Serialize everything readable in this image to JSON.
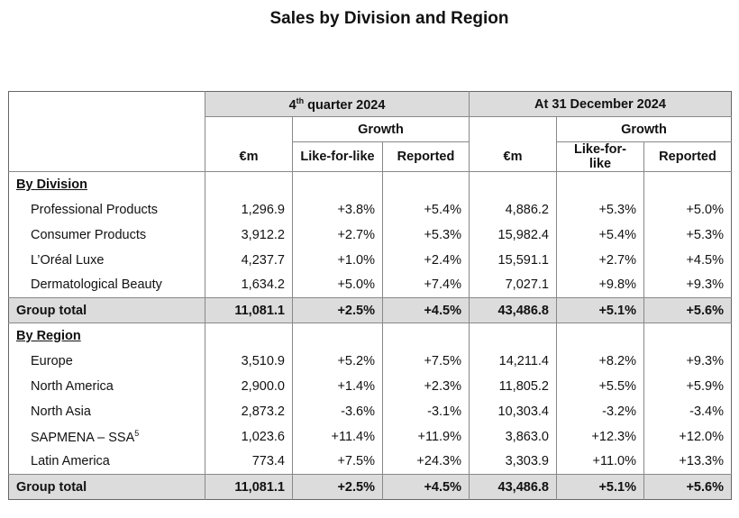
{
  "title": "Sales by Division and Region",
  "headers": {
    "q4_prefix": "4",
    "q4_sup": "th",
    "q4_suffix": " quarter 2024",
    "year": "At 31 December 2024",
    "growth": "Growth",
    "eur": "€m",
    "lfl": "Like-for-like",
    "reported": "Reported"
  },
  "division": {
    "label": "By Division",
    "rows": [
      {
        "name": "Professional Products",
        "q_em": "1,296.9",
        "q_lfl": "+3.8%",
        "q_rep": "+5.4%",
        "y_em": "4,886.2",
        "y_lfl": "+5.3%",
        "y_rep": "+5.0%"
      },
      {
        "name": "Consumer Products",
        "q_em": "3,912.2",
        "q_lfl": "+2.7%",
        "q_rep": "+5.3%",
        "y_em": "15,982.4",
        "y_lfl": "+5.4%",
        "y_rep": "+5.3%"
      },
      {
        "name": "L’Oréal Luxe",
        "q_em": "4,237.7",
        "q_lfl": "+1.0%",
        "q_rep": "+2.4%",
        "y_em": "15,591.1",
        "y_lfl": "+2.7%",
        "y_rep": "+4.5%"
      },
      {
        "name": "Dermatological Beauty",
        "q_em": "1,634.2",
        "q_lfl": "+5.0%",
        "q_rep": "+7.4%",
        "y_em": "7,027.1",
        "y_lfl": "+9.8%",
        "y_rep": "+9.3%"
      }
    ],
    "total": {
      "name": "Group total",
      "q_em": "11,081.1",
      "q_lfl": "+2.5%",
      "q_rep": "+4.5%",
      "y_em": "43,486.8",
      "y_lfl": "+5.1%",
      "y_rep": "+5.6%"
    }
  },
  "region": {
    "label": "By Region",
    "rows": [
      {
        "name": "Europe",
        "q_em": "3,510.9",
        "q_lfl": "+5.2%",
        "q_rep": "+7.5%",
        "y_em": "14,211.4",
        "y_lfl": "+8.2%",
        "y_rep": "+9.3%"
      },
      {
        "name": "North America",
        "q_em": "2,900.0",
        "q_lfl": "+1.4%",
        "q_rep": "+2.3%",
        "y_em": "11,805.2",
        "y_lfl": "+5.5%",
        "y_rep": "+5.9%"
      },
      {
        "name": "North Asia",
        "q_em": "2,873.2",
        "q_lfl": "-3.6%",
        "q_rep": "-3.1%",
        "y_em": "10,303.4",
        "y_lfl": "-3.2%",
        "y_rep": "-3.4%"
      },
      {
        "name": "SAPMENA – SSA",
        "sup": "5",
        "q_em": "1,023.6",
        "q_lfl": "+11.4%",
        "q_rep": "+11.9%",
        "y_em": "3,863.0",
        "y_lfl": "+12.3%",
        "y_rep": "+12.0%"
      },
      {
        "name": "Latin America",
        "q_em": "773.4",
        "q_lfl": "+7.5%",
        "q_rep": "+24.3%",
        "y_em": "3,303.9",
        "y_lfl": "+11.0%",
        "y_rep": "+13.3%"
      }
    ],
    "total": {
      "name": "Group total",
      "q_em": "11,081.1",
      "q_lfl": "+2.5%",
      "q_rep": "+4.5%",
      "y_em": "43,486.8",
      "y_lfl": "+5.1%",
      "y_rep": "+5.6%"
    }
  }
}
